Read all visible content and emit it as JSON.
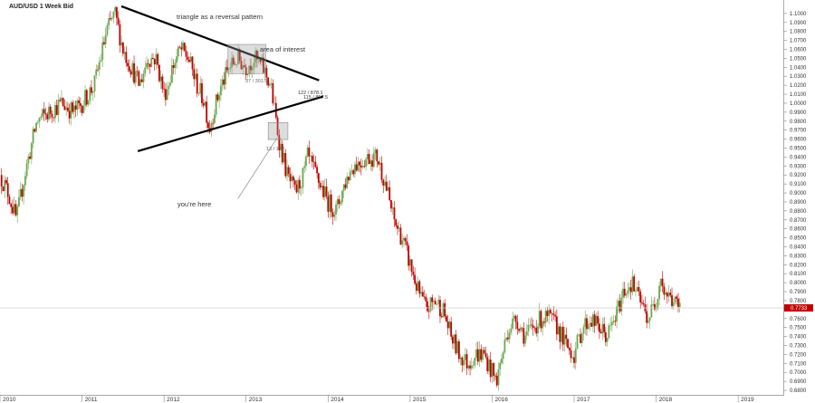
{
  "symbol_label": "AUD/USD  1 Week Bid",
  "annotations": {
    "pattern": "triangle as a reversal pattern",
    "area": "area of interest",
    "here": "you're here",
    "m1": "37 / 301.5",
    "m2": "122 / 878.1",
    "m3": "115 / 857.5",
    "m4": "13 / 177"
  },
  "last_price": "0.7733",
  "colors": {
    "up": "#6aa84f",
    "down": "#c00000",
    "price_tag": "#c00000"
  },
  "chart_data": {
    "type": "candlestick",
    "title": "AUD/USD  1 Week Bid",
    "xlabel": "",
    "ylabel": "",
    "xlim": [
      2010.0,
      2019.55
    ],
    "ylim": [
      0.675,
      1.115
    ],
    "y_ticks": [
      0.68,
      0.69,
      0.7,
      0.71,
      0.72,
      0.73,
      0.74,
      0.75,
      0.76,
      0.77,
      0.78,
      0.79,
      0.8,
      0.81,
      0.82,
      0.83,
      0.84,
      0.85,
      0.86,
      0.87,
      0.88,
      0.89,
      0.9,
      0.91,
      0.92,
      0.93,
      0.94,
      0.95,
      0.96,
      0.97,
      0.98,
      0.99,
      1.0,
      1.01,
      1.02,
      1.03,
      1.04,
      1.05,
      1.06,
      1.07,
      1.08,
      1.09,
      1.1
    ],
    "x_ticks": [
      "2010",
      "2011",
      "2012",
      "2013",
      "2014",
      "2015",
      "2016",
      "2017",
      "2018",
      "2019"
    ],
    "x_tick_years": [
      2010,
      2011,
      2012,
      2013,
      2014,
      2015,
      2016,
      2017,
      2018,
      2019
    ],
    "price_path": [
      [
        2010.0,
        0.92
      ],
      [
        2010.1,
        0.9
      ],
      [
        2010.2,
        0.87
      ],
      [
        2010.3,
        0.92
      ],
      [
        2010.45,
        0.98
      ],
      [
        2010.6,
        0.99
      ],
      [
        2010.75,
        1.0
      ],
      [
        2010.9,
        0.99
      ],
      [
        2011.0,
        1.0
      ],
      [
        2011.15,
        1.02
      ],
      [
        2011.3,
        1.08
      ],
      [
        2011.4,
        1.1
      ],
      [
        2011.5,
        1.06
      ],
      [
        2011.6,
        1.04
      ],
      [
        2011.7,
        1.02
      ],
      [
        2011.8,
        1.05
      ],
      [
        2011.9,
        1.05
      ],
      [
        2012.0,
        1.01
      ],
      [
        2012.05,
        1.02
      ],
      [
        2012.1,
        1.04
      ],
      [
        2012.2,
        1.06
      ],
      [
        2012.3,
        1.05
      ],
      [
        2012.4,
        1.02
      ],
      [
        2012.5,
        1.0
      ],
      [
        2012.55,
        0.97
      ],
      [
        2012.6,
        0.99
      ],
      [
        2012.7,
        1.02
      ],
      [
        2012.8,
        1.04
      ],
      [
        2012.9,
        1.05
      ],
      [
        2013.0,
        1.04
      ],
      [
        2013.1,
        1.05
      ],
      [
        2013.2,
        1.04
      ],
      [
        2013.25,
        1.03
      ],
      [
        2013.3,
        1.02
      ],
      [
        2013.35,
        0.99
      ],
      [
        2013.4,
        0.96
      ],
      [
        2013.5,
        0.92
      ],
      [
        2013.6,
        0.9
      ],
      [
        2013.7,
        0.92
      ],
      [
        2013.75,
        0.94
      ],
      [
        2013.85,
        0.92
      ],
      [
        2013.95,
        0.9
      ],
      [
        2014.0,
        0.89
      ],
      [
        2014.1,
        0.88
      ],
      [
        2014.2,
        0.91
      ],
      [
        2014.3,
        0.93
      ],
      [
        2014.5,
        0.94
      ],
      [
        2014.6,
        0.94
      ],
      [
        2014.7,
        0.91
      ],
      [
        2014.8,
        0.87
      ],
      [
        2014.9,
        0.85
      ],
      [
        2015.0,
        0.82
      ],
      [
        2015.1,
        0.79
      ],
      [
        2015.2,
        0.77
      ],
      [
        2015.3,
        0.78
      ],
      [
        2015.4,
        0.77
      ],
      [
        2015.5,
        0.74
      ],
      [
        2015.6,
        0.72
      ],
      [
        2015.7,
        0.71
      ],
      [
        2015.8,
        0.72
      ],
      [
        2015.9,
        0.72
      ],
      [
        2016.0,
        0.7
      ],
      [
        2016.05,
        0.69
      ],
      [
        2016.2,
        0.75
      ],
      [
        2016.3,
        0.76
      ],
      [
        2016.4,
        0.74
      ],
      [
        2016.5,
        0.75
      ],
      [
        2016.6,
        0.76
      ],
      [
        2016.7,
        0.76
      ],
      [
        2016.8,
        0.75
      ],
      [
        2016.9,
        0.73
      ],
      [
        2017.0,
        0.72
      ],
      [
        2017.1,
        0.75
      ],
      [
        2017.2,
        0.76
      ],
      [
        2017.3,
        0.75
      ],
      [
        2017.4,
        0.74
      ],
      [
        2017.5,
        0.76
      ],
      [
        2017.6,
        0.79
      ],
      [
        2017.7,
        0.8
      ],
      [
        2017.8,
        0.78
      ],
      [
        2017.9,
        0.76
      ],
      [
        2018.0,
        0.78
      ],
      [
        2018.05,
        0.81
      ],
      [
        2018.1,
        0.79
      ],
      [
        2018.2,
        0.78
      ],
      [
        2018.3,
        0.77
      ]
    ],
    "lines": [
      {
        "name": "triangle-upper",
        "from": [
          2011.48,
          1.108
        ],
        "to": [
          2013.89,
          1.0255
        ]
      },
      {
        "name": "triangle-lower",
        "from": [
          2011.68,
          0.9465
        ],
        "to": [
          2013.94,
          1.0075
        ]
      },
      {
        "name": "pointer",
        "from": [
          2012.9,
          0.8935
        ],
        "to": [
          2013.38,
          0.9615
        ]
      }
    ],
    "boxes": [
      {
        "name": "area-of-interest",
        "x0": 2012.78,
        "x1": 2013.24,
        "y0": 1.033,
        "y1": 1.0655
      },
      {
        "name": "current-zone",
        "x0": 2013.27,
        "x1": 2013.51,
        "y0": 0.9595,
        "y1": 0.9785
      }
    ],
    "last_value": 0.7733
  }
}
